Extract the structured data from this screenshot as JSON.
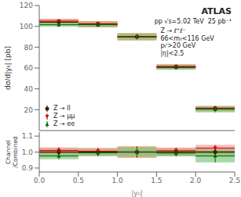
{
  "chart_data": [
    {
      "type": "errorbar",
      "title": "ATLAS",
      "subtitle": "pp √s=5.02 TeV  25 pb⁻¹",
      "y_label": "dσ/d|yₗₗ| [pb]",
      "annotations": [
        "Z → ℓ⁺ℓ⁻",
        "66<mₗₗ<116 GeV",
        "pₜˡ>20 GeV",
        "|η|<2.5"
      ],
      "x": [
        0.25,
        0.75,
        1.25,
        1.75,
        2.25
      ],
      "x_half_widths": [
        0.25,
        0.25,
        0.25,
        0.25,
        0.25
      ],
      "series": [
        {
          "name": "Z → ll",
          "color": "#3d1f00",
          "band_color": "#c8a060",
          "marker": "circle",
          "values": [
            104.0,
            102.0,
            90.0,
            61.0,
            21.0
          ],
          "errors": [
            1.5,
            1.5,
            2.0,
            1.5,
            1.5
          ],
          "band_errors": [
            3.0,
            3.0,
            3.5,
            2.5,
            2.5
          ]
        },
        {
          "name": "Z → μμ",
          "color": "#cc0000",
          "band_color": "#f4a0a0",
          "marker": "triangle_down",
          "values": [
            105.0,
            102.5,
            90.0,
            61.5,
            21.5
          ],
          "errors": [
            2.0,
            2.0,
            2.5,
            2.0,
            2.0
          ]
        },
        {
          "name": "Z → ee",
          "color": "#006600",
          "band_color": "#80c880",
          "marker": "triangle_up",
          "values": [
            101.5,
            101.5,
            90.0,
            60.5,
            20.5
          ],
          "errors": [
            2.0,
            2.0,
            2.5,
            2.0,
            3.0
          ]
        }
      ],
      "xlim": [
        0,
        2.5
      ],
      "ylim": [
        0,
        120
      ],
      "yticks": [
        20,
        40,
        60,
        80,
        100,
        120
      ],
      "legend": "lower left",
      "tick_labels": "y"
    },
    {
      "type": "errorbar",
      "y_label": "Channel\n/Combined",
      "x_label": "|yₗₗ|",
      "x": [
        0.25,
        0.75,
        1.25,
        1.75,
        2.25
      ],
      "x_half_widths": [
        0.25,
        0.25,
        0.25,
        0.25,
        0.25
      ],
      "series": [
        {
          "color": "#3d1f00",
          "band_color": "#c8a060",
          "marker": "circle",
          "values": [
            1.0,
            1.0,
            1.0,
            1.0,
            1.0
          ],
          "errors": [
            0.025,
            0.025,
            0.035,
            0.025,
            0.025
          ]
        },
        {
          "color": "#cc0000",
          "band_color": "#f4a0a0",
          "marker": "triangle_down",
          "values": [
            1.01,
            1.005,
            1.0,
            1.008,
            1.025
          ],
          "errors": [
            0.02,
            0.02,
            0.025,
            0.02,
            0.02
          ]
        },
        {
          "color": "#006600",
          "band_color": "#80c880",
          "marker": "triangle_up",
          "values": [
            0.975,
            0.995,
            1.0,
            0.993,
            0.975
          ],
          "errors": [
            0.02,
            0.02,
            0.025,
            0.02,
            0.04
          ]
        }
      ],
      "reference_y": 1.0,
      "xlim": [
        0,
        2.5
      ],
      "xticks": [
        {
          "value": 0,
          "label": "0.0"
        },
        0.5,
        {
          "value": 1,
          "label": "1.0"
        },
        1.5,
        {
          "value": 2,
          "label": "2.0"
        },
        2.5
      ],
      "ylim": [
        0.875,
        1.125
      ],
      "yticks": [
        0.9,
        {
          "value": 1,
          "label": "1.0"
        },
        1.1
      ]
    }
  ]
}
